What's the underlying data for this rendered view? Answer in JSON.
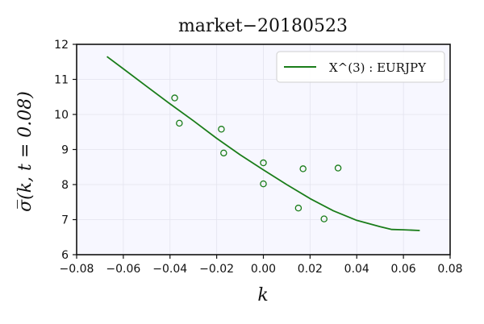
{
  "chart_data": {
    "type": "scatter",
    "title": "market−20180523",
    "xlabel": "k",
    "ylabel": "σ̅(k, t = 0.08)",
    "xlim": [
      -0.08,
      0.08
    ],
    "ylim": [
      6,
      12
    ],
    "xticks": [
      "−0.08",
      "−0.06",
      "−0.04",
      "−0.02",
      "0.00",
      "0.02",
      "0.04",
      "0.06",
      "0.08"
    ],
    "yticks": [
      "6",
      "7",
      "8",
      "9",
      "10",
      "11",
      "12"
    ],
    "grid": true,
    "legend_position": "top-right",
    "colors": {
      "series": "#1a7d1a",
      "plot_bg": "#f7f7ff"
    },
    "series": [
      {
        "name": "X^(3) : EURJPY",
        "kind": "line",
        "x": [
          -0.067,
          -0.06,
          -0.05,
          -0.04,
          -0.03,
          -0.02,
          -0.01,
          0.0,
          0.01,
          0.02,
          0.03,
          0.04,
          0.05,
          0.055,
          0.06,
          0.067
        ],
        "y": [
          11.65,
          11.3,
          10.8,
          10.3,
          9.82,
          9.32,
          8.85,
          8.42,
          8.0,
          7.6,
          7.25,
          6.98,
          6.8,
          6.72,
          6.71,
          6.69
        ]
      },
      {
        "name": "",
        "kind": "points",
        "x": [
          -0.038,
          -0.036,
          -0.018,
          -0.017,
          0.0,
          0.0,
          0.015,
          0.017,
          0.026,
          0.032
        ],
        "y": [
          10.47,
          9.75,
          9.58,
          8.9,
          8.62,
          8.02,
          7.33,
          8.45,
          7.02,
          8.47
        ]
      }
    ]
  }
}
